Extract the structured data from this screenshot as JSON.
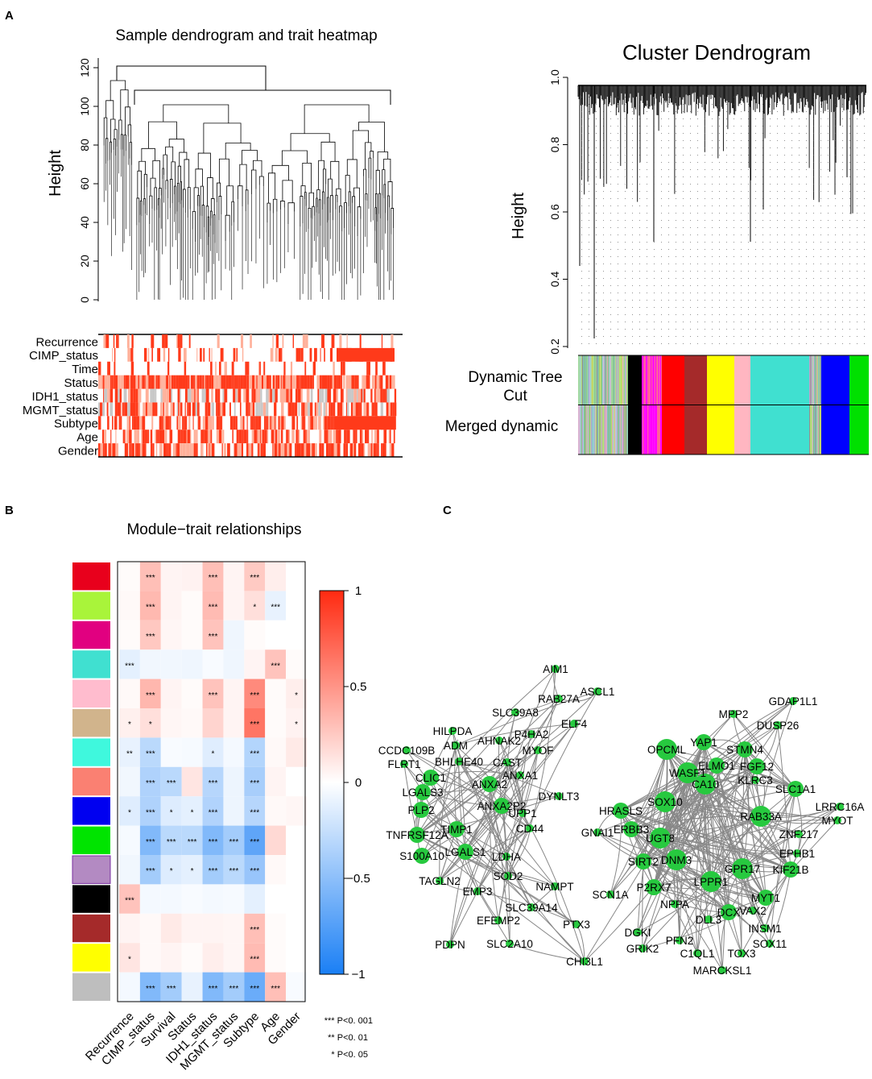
{
  "panels": {
    "a": {
      "label": "A",
      "left_title": "Sample dendrogram and trait heatmap",
      "left_ylabel": "Height",
      "left_yticks": [
        "0",
        "20",
        "40",
        "60",
        "80",
        "100",
        "120"
      ],
      "traits": [
        "Recurrence",
        "CIMP_status",
        "Time",
        "Status",
        "IDH1_status",
        "MGMT_status",
        "Subtype",
        "Age",
        "Gender"
      ],
      "right_title": "Cluster Dendrogram",
      "right_ylabel": "Height",
      "right_yticks": [
        "0.2",
        "0.4",
        "0.6",
        "0.8",
        "1.0"
      ],
      "row_dynamic": "Dynamic Tree Cut",
      "row_dynamic_line1": "Dynamic Tree",
      "row_dynamic_line2": "Cut",
      "row_merged": "Merged dynamic"
    },
    "b": {
      "label": "B",
      "title": "Module−trait relationships",
      "colorbar_ticks": [
        "1",
        "0.5",
        "0",
        "−0.5",
        "−1"
      ],
      "legend": [
        "*** P<0. 001",
        "** P<0. 01",
        "* P<0. 05"
      ]
    },
    "c": {
      "label": "C"
    }
  },
  "colors": {
    "heat_pos": "#ff2a10",
    "heat_neg": "#1a7ff5",
    "node": "#27c93f",
    "edge": "#808080"
  },
  "module_colors": [
    "#e8001c",
    "#a9f43a",
    "#e10080",
    "#40e0d0",
    "#ffbcce",
    "#d1b48c",
    "#3ff8dd",
    "#fa8072",
    "#0000f0",
    "#00e400",
    "#b38ac2",
    "#000000",
    "#a52a2a",
    "#ffff00",
    "#bebebe"
  ],
  "chart_data": {
    "type": "heatmap",
    "title": "Module−trait relationships",
    "x_labels": [
      "Recurrence",
      "CIMP_status",
      "Survival",
      "Status",
      "IDH1_status",
      "MGMT_status",
      "Subtype",
      "Age",
      "Gender"
    ],
    "values": [
      [
        0.02,
        0.3,
        0.05,
        0.06,
        0.3,
        0.05,
        0.25,
        0.08,
        0.0
      ],
      [
        0.03,
        0.33,
        0.05,
        0.02,
        0.32,
        0.05,
        0.15,
        -0.1,
        0.0
      ],
      [
        0.02,
        0.26,
        0.04,
        0.02,
        0.28,
        -0.07,
        0.02,
        0.0,
        0.0
      ],
      [
        -0.12,
        -0.06,
        -0.06,
        -0.07,
        -0.03,
        -0.07,
        0.05,
        0.28,
        0.02
      ],
      [
        0.03,
        0.34,
        0.05,
        0.02,
        0.28,
        0.05,
        0.55,
        0.02,
        0.08
      ],
      [
        0.07,
        0.15,
        0.04,
        0.03,
        0.2,
        0.05,
        0.65,
        0.02,
        0.06
      ],
      [
        -0.1,
        -0.3,
        -0.03,
        -0.04,
        -0.14,
        -0.05,
        -0.33,
        0.03,
        0.1
      ],
      [
        -0.06,
        -0.35,
        -0.3,
        0.12,
        -0.32,
        -0.08,
        -0.38,
        0.05,
        0.0
      ],
      [
        -0.14,
        -0.35,
        -0.15,
        -0.12,
        -0.34,
        -0.08,
        -0.32,
        0.03,
        0.04
      ],
      [
        -0.04,
        -0.55,
        -0.3,
        -0.3,
        -0.55,
        -0.4,
        -0.7,
        0.18,
        0.0
      ],
      [
        -0.06,
        -0.4,
        -0.15,
        -0.12,
        -0.4,
        -0.3,
        -0.45,
        0.03,
        0.0
      ],
      [
        0.28,
        -0.05,
        -0.05,
        -0.03,
        -0.05,
        -0.04,
        -0.12,
        0.0,
        0.0
      ],
      [
        0.05,
        0.03,
        0.1,
        0.05,
        0.05,
        0.04,
        0.3,
        0.02,
        0.0
      ],
      [
        0.12,
        0.03,
        0.05,
        0.02,
        0.08,
        0.04,
        0.32,
        0.02,
        0.0
      ],
      [
        -0.05,
        -0.55,
        -0.4,
        -0.1,
        -0.55,
        -0.4,
        -0.65,
        0.3,
        -0.03
      ]
    ],
    "stars": [
      [
        "",
        "***",
        "",
        "",
        "***",
        "",
        "***",
        "",
        ""
      ],
      [
        "",
        "***",
        "",
        "",
        "***",
        "",
        "*",
        "***",
        ""
      ],
      [
        "",
        "***",
        "",
        "",
        "***",
        "",
        "",
        "",
        ""
      ],
      [
        "***",
        "",
        "",
        "",
        "",
        "",
        "",
        "***",
        ""
      ],
      [
        "",
        "***",
        "",
        "",
        "***",
        "",
        "***",
        "",
        "*"
      ],
      [
        "*",
        "*",
        "",
        "",
        "",
        "",
        "***",
        "",
        "*"
      ],
      [
        "**",
        "***",
        "",
        "",
        "*",
        "",
        "***",
        "",
        ""
      ],
      [
        "",
        "***",
        "***",
        "",
        "***",
        "",
        "***",
        "",
        ""
      ],
      [
        "*",
        "***",
        "*",
        "*",
        "***",
        "",
        "***",
        "",
        ""
      ],
      [
        "",
        "***",
        "***",
        "***",
        "***",
        "***",
        "***",
        "",
        ""
      ],
      [
        "",
        "***",
        "*",
        "*",
        "***",
        "***",
        "***",
        "",
        ""
      ],
      [
        "***",
        "",
        "",
        "",
        "",
        "",
        "",
        "",
        ""
      ],
      [
        "",
        "",
        "",
        "",
        "",
        "",
        "***",
        "",
        ""
      ],
      [
        "*",
        "",
        "",
        "",
        "",
        "",
        "***",
        "",
        ""
      ],
      [
        "",
        "***",
        "***",
        "",
        "***",
        "***",
        "***",
        "***",
        ""
      ]
    ],
    "value_range": [
      -1,
      1
    ]
  },
  "network": {
    "nodes": [
      {
        "name": "AIM1",
        "size": "s"
      },
      {
        "name": "ASCL1",
        "size": "s"
      },
      {
        "name": "RAB27A",
        "size": "s"
      },
      {
        "name": "SLC39A8",
        "size": "s"
      },
      {
        "name": "ELF4",
        "size": "s"
      },
      {
        "name": "HILPDA",
        "size": "s"
      },
      {
        "name": "P4HA2",
        "size": "s"
      },
      {
        "name": "AHNAK2",
        "size": "s"
      },
      {
        "name": "ADM",
        "size": "s"
      },
      {
        "name": "MYOF",
        "size": "s"
      },
      {
        "name": "CCDC109B",
        "size": "s"
      },
      {
        "name": "FLRT1",
        "size": "s"
      },
      {
        "name": "BHLHE40",
        "size": "s"
      },
      {
        "name": "CAST",
        "size": "s"
      },
      {
        "name": "CLIC1",
        "size": "m"
      },
      {
        "name": "ANXA1",
        "size": "s"
      },
      {
        "name": "ANXA2",
        "size": "m"
      },
      {
        "name": "LGALS3",
        "size": "m"
      },
      {
        "name": "DYNLT3",
        "size": "s"
      },
      {
        "name": "PLP2",
        "size": "m"
      },
      {
        "name": "ANXA2P2",
        "size": "m"
      },
      {
        "name": "UPP1",
        "size": "s"
      },
      {
        "name": "CD44",
        "size": "s"
      },
      {
        "name": "TNFRSF12A",
        "size": "m"
      },
      {
        "name": "TIMP1",
        "size": "m"
      },
      {
        "name": "LDHA",
        "size": "s"
      },
      {
        "name": "S100A10",
        "size": "m"
      },
      {
        "name": "LGALS1",
        "size": "m"
      },
      {
        "name": "SOD2",
        "size": "s"
      },
      {
        "name": "NAMPT",
        "size": "s"
      },
      {
        "name": "TAGLN2",
        "size": "s"
      },
      {
        "name": "EMP3",
        "size": "s"
      },
      {
        "name": "SLC39A14",
        "size": "s"
      },
      {
        "name": "EFEMP2",
        "size": "s"
      },
      {
        "name": "PTX3",
        "size": "s"
      },
      {
        "name": "PDPN",
        "size": "s"
      },
      {
        "name": "SLC2A10",
        "size": "s"
      },
      {
        "name": "CHI3L1",
        "size": "s"
      },
      {
        "name": "GDAP1L1",
        "size": "s"
      },
      {
        "name": "MPP2",
        "size": "s"
      },
      {
        "name": "DUSP26",
        "size": "s"
      },
      {
        "name": "OPCML",
        "size": "l"
      },
      {
        "name": "YAP1",
        "size": "m"
      },
      {
        "name": "STMN4",
        "size": "m"
      },
      {
        "name": "ELMO1",
        "size": "m"
      },
      {
        "name": "FGF12",
        "size": "m"
      },
      {
        "name": "WASF1",
        "size": "l"
      },
      {
        "name": "CA10",
        "size": "l"
      },
      {
        "name": "KLRC3",
        "size": "s"
      },
      {
        "name": "SLC1A1",
        "size": "m"
      },
      {
        "name": "SOX10",
        "size": "l"
      },
      {
        "name": "LRRC16A",
        "size": "s"
      },
      {
        "name": "MYOT",
        "size": "s"
      },
      {
        "name": "HRASLS",
        "size": "m"
      },
      {
        "name": "RAB33A",
        "size": "l"
      },
      {
        "name": "GNAI1",
        "size": "s"
      },
      {
        "name": "ERBB3",
        "size": "m"
      },
      {
        "name": "ZNF217",
        "size": "s"
      },
      {
        "name": "UGT8",
        "size": "l"
      },
      {
        "name": "EPHB1",
        "size": "s"
      },
      {
        "name": "SIRT2",
        "size": "m"
      },
      {
        "name": "DNM3",
        "size": "l"
      },
      {
        "name": "GPR17",
        "size": "l"
      },
      {
        "name": "KIF21B",
        "size": "m"
      },
      {
        "name": "LPPR1",
        "size": "l"
      },
      {
        "name": "P2RX7",
        "size": "m"
      },
      {
        "name": "SCN1A",
        "size": "s"
      },
      {
        "name": "MYT1",
        "size": "m"
      },
      {
        "name": "NPPA",
        "size": "s"
      },
      {
        "name": "DCX",
        "size": "m"
      },
      {
        "name": "VAX2",
        "size": "s"
      },
      {
        "name": "DLL3",
        "size": "s"
      },
      {
        "name": "INSM1",
        "size": "s"
      },
      {
        "name": "DGKI",
        "size": "s"
      },
      {
        "name": "PFN2",
        "size": "s"
      },
      {
        "name": "SOX11",
        "size": "s"
      },
      {
        "name": "GRIK2",
        "size": "s"
      },
      {
        "name": "C1QL1",
        "size": "s"
      },
      {
        "name": "TOX3",
        "size": "s"
      },
      {
        "name": "MARCKSL1",
        "size": "s"
      }
    ]
  }
}
